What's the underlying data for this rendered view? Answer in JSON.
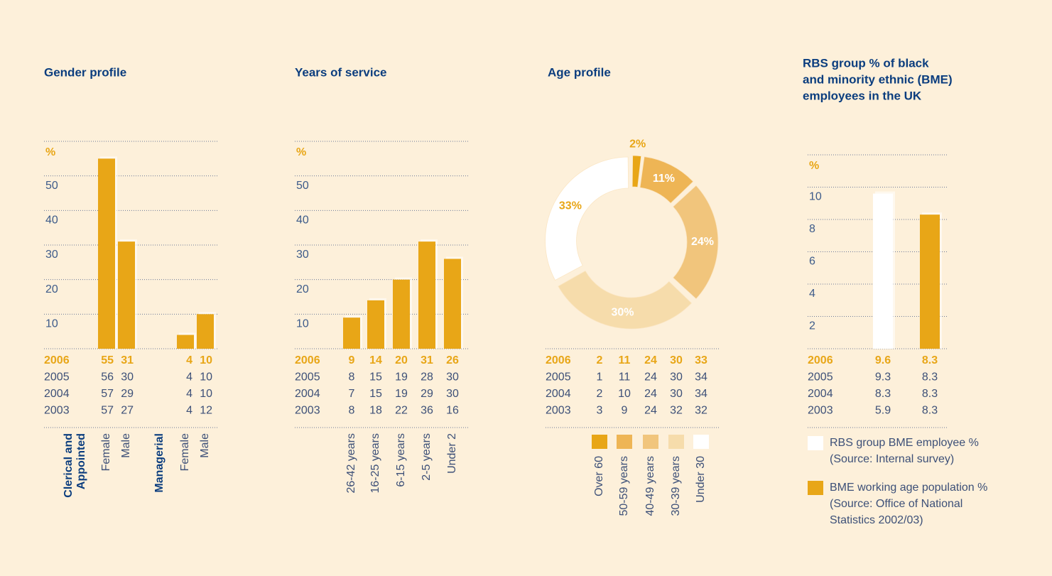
{
  "chart_data": [
    {
      "type": "bar",
      "title": "Gender profile",
      "ylabel": "%",
      "groups": [
        {
          "label": [
            "Clerical and",
            "Appointed"
          ],
          "categories": [
            "Female",
            "Male"
          ]
        },
        {
          "label": [
            "Managerial"
          ],
          "categories": [
            "Female",
            "Male"
          ]
        }
      ],
      "series": [
        {
          "name": "2006",
          "color": "#e8a617",
          "values": [
            55,
            31,
            4,
            10
          ]
        },
        {
          "name": "2005",
          "values": [
            56,
            30,
            4,
            10
          ]
        },
        {
          "name": "2004",
          "values": [
            57,
            29,
            4,
            10
          ]
        },
        {
          "name": "2003",
          "values": [
            57,
            27,
            4,
            12
          ]
        }
      ],
      "ylim": [
        0,
        60
      ],
      "yticks": [
        10,
        20,
        30,
        40,
        50
      ],
      "grid": true
    },
    {
      "type": "bar",
      "title": "Years of service",
      "ylabel": "%",
      "categories": [
        "26-42 years",
        "16-25 years",
        "6-15 years",
        "2-5 years",
        "Under 2"
      ],
      "series": [
        {
          "name": "2006",
          "color": "#e8a617",
          "values": [
            9,
            14,
            20,
            31,
            26
          ]
        },
        {
          "name": "2005",
          "values": [
            8,
            15,
            19,
            28,
            30
          ]
        },
        {
          "name": "2004",
          "values": [
            7,
            15,
            19,
            29,
            30
          ]
        },
        {
          "name": "2003",
          "values": [
            8,
            18,
            22,
            36,
            16
          ]
        }
      ],
      "ylim": [
        0,
        60
      ],
      "yticks": [
        10,
        20,
        30,
        40,
        50
      ],
      "grid": true
    },
    {
      "type": "pie",
      "title": "Age profile",
      "categories": [
        "Over 60",
        "50-59 years",
        "40-49 years",
        "30-39 years",
        "Under 30"
      ],
      "colors": [
        "#e8a617",
        "#eeb555",
        "#f1c57c",
        "#f6dcab",
        "#ffffff"
      ],
      "series": [
        {
          "name": "2006",
          "values": [
            2,
            11,
            24,
            30,
            33
          ],
          "value_labels": [
            "2%",
            "11%",
            "24%",
            "30%",
            "33%"
          ]
        },
        {
          "name": "2005",
          "values": [
            1,
            11,
            24,
            30,
            34
          ]
        },
        {
          "name": "2004",
          "values": [
            2,
            10,
            24,
            30,
            34
          ]
        },
        {
          "name": "2003",
          "values": [
            3,
            9,
            24,
            32,
            32
          ]
        }
      ]
    },
    {
      "type": "bar",
      "title": [
        "RBS group % of black",
        "and minority ethnic (BME)",
        "employees in the UK"
      ],
      "ylabel": "%",
      "categories": [
        "2006",
        "2005",
        "2004",
        "2003"
      ],
      "series": [
        {
          "name": "RBS group BME employee %",
          "source": [
            "(Source: Internal survey)"
          ],
          "color": "#ffffff",
          "values": [
            9.6,
            9.3,
            8.3,
            5.9
          ]
        },
        {
          "name": "BME working age population %",
          "source": [
            "(Source: Office of National",
            "Statistics 2002/03)"
          ],
          "color": "#e8a617",
          "values": [
            8.3,
            8.3,
            8.3,
            8.3
          ]
        }
      ],
      "ylim": [
        0,
        12
      ],
      "yticks": [
        2,
        4,
        6,
        8,
        10
      ],
      "grid": true,
      "legend": "bottom"
    }
  ]
}
